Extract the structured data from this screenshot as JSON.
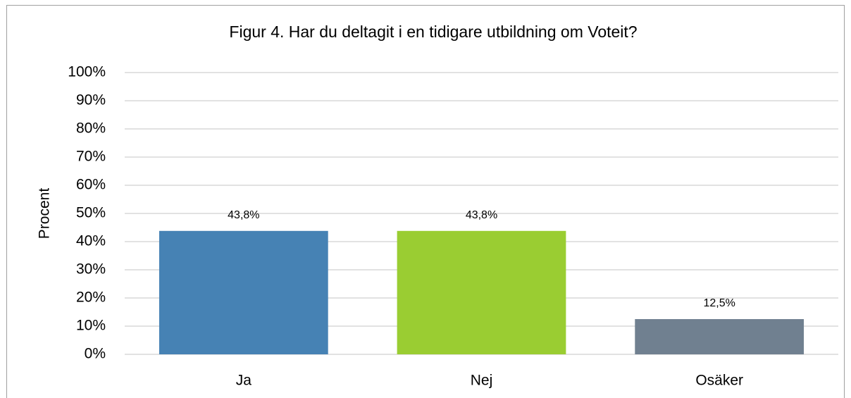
{
  "chart_data": {
    "type": "bar",
    "title": "Figur 4. Har du deltagit i en tidigare utbildning om Voteit?",
    "ylabel": "Procent",
    "categories": [
      "Ja",
      "Nej",
      "Osäker"
    ],
    "values": [
      43.8,
      43.8,
      12.5
    ],
    "value_labels": [
      "43,8%",
      "43,8%",
      "12,5%"
    ],
    "colors": [
      "#4682b4",
      "#9acd32",
      "#708090"
    ],
    "ylim": [
      0,
      100
    ],
    "yticks": [
      {
        "value": 0,
        "label": "0%"
      },
      {
        "value": 10,
        "label": "10%"
      },
      {
        "value": 20,
        "label": "20%"
      },
      {
        "value": 30,
        "label": "30%"
      },
      {
        "value": 40,
        "label": "40%"
      },
      {
        "value": 50,
        "label": "50%"
      },
      {
        "value": 60,
        "label": "60%"
      },
      {
        "value": 70,
        "label": "70%"
      },
      {
        "value": 80,
        "label": "80%"
      },
      {
        "value": 90,
        "label": "90%"
      },
      {
        "value": 100,
        "label": "100%"
      }
    ],
    "grid": true
  }
}
